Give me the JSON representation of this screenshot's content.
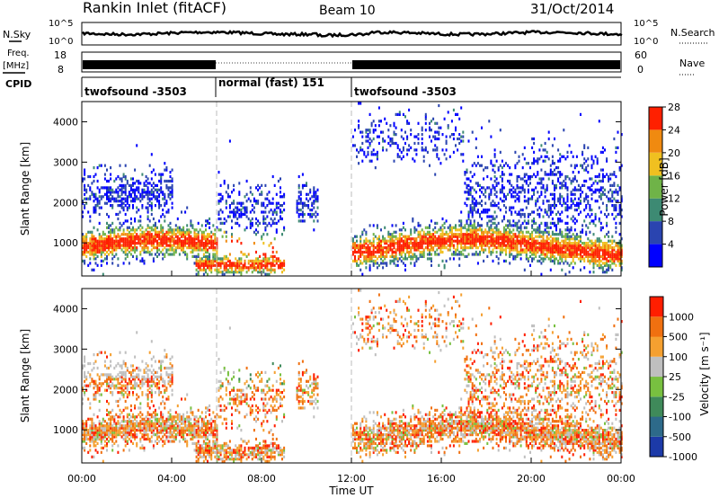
{
  "header": {
    "station": "Rankin Inlet (fitACF)",
    "beam": "Beam 10",
    "date": "31/Oct/2014"
  },
  "params": {
    "nsky_label": "N.Sky",
    "nsky_ticks": [
      "10^5",
      "10^0"
    ],
    "nsearch_label": "N.Search",
    "nsearch_ticks": [
      "10^5",
      "10^0"
    ],
    "freq_label_1": "Freq.",
    "freq_label_2": "[MHz]",
    "freq_ticks": [
      "18",
      "8"
    ],
    "nave_label": "Nave",
    "nave_ticks": [
      "60",
      "0"
    ],
    "cpid_label": "CPID",
    "cpid_segments": [
      {
        "label": "twofsound -3503",
        "start": 0,
        "end": 6
      },
      {
        "label": "normal (fast) 151",
        "start": 6,
        "end": 12
      },
      {
        "label": "twofsound -3503",
        "start": 12,
        "end": 24
      }
    ]
  },
  "chart_data": [
    {
      "type": "heatmap",
      "variable": "power",
      "ylabel": "Slant Range [km]",
      "xlim": [
        0,
        24
      ],
      "ylim": [
        180,
        4500
      ],
      "y_ticks": [
        1000,
        2000,
        3000,
        4000
      ],
      "colorbar": {
        "label": "Power [dB]",
        "ticks": [
          "4",
          "8",
          "12",
          "16",
          "20",
          "24",
          "28"
        ],
        "colors": [
          "#0000ff",
          "#2a44b0",
          "#3d8a73",
          "#6fb348",
          "#f0c020",
          "#f08a10",
          "#ff2000"
        ]
      }
    },
    {
      "type": "heatmap",
      "variable": "velocity",
      "ylabel": "Slant Range [km]",
      "xlabel": "Time UT",
      "xlim": [
        0,
        24
      ],
      "ylim": [
        180,
        4500
      ],
      "x_tick_labels": [
        "00:00",
        "04:00",
        "08:00",
        "12:00",
        "16:00",
        "20:00",
        "00:00"
      ],
      "y_ticks": [
        1000,
        2000,
        3000,
        4000
      ],
      "colorbar": {
        "label": "Velocity [m s⁻¹]",
        "ticks": [
          "1000",
          "500",
          "100",
          "25",
          "-25",
          "-100",
          "-500",
          "-1000"
        ],
        "colors": [
          "#1c3aa8",
          "#2d6a8a",
          "#3f8a5a",
          "#78c040",
          "#bfbfbf",
          "#f5a030",
          "#f07010",
          "#ff1e00"
        ]
      }
    }
  ]
}
